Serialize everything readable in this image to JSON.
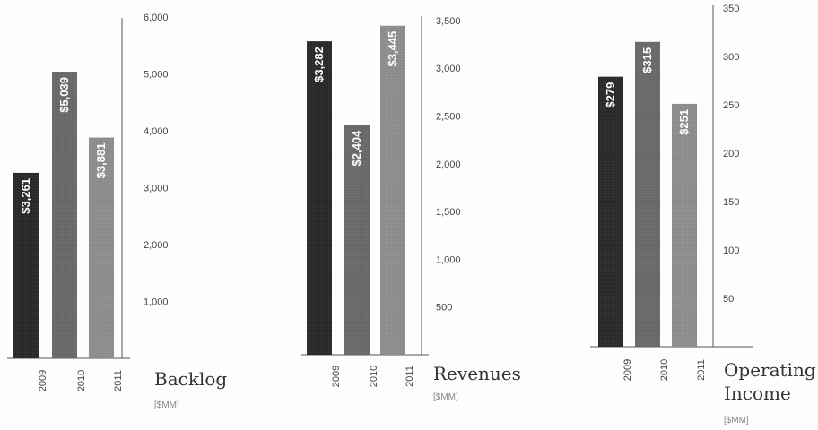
{
  "chart_data": [
    {
      "type": "bar",
      "title": [
        "Backlog"
      ],
      "unit": "[$MM]",
      "categories": [
        "2009",
        "2010",
        "2011"
      ],
      "values": [
        3261,
        5039,
        3881
      ],
      "data_labels": [
        "$3,261",
        "$5,039",
        "$3,881"
      ],
      "yticks": [
        1000,
        2000,
        3000,
        4000,
        5000,
        6000
      ],
      "ytick_labels": [
        "1,000",
        "2,000",
        "3,000",
        "4,000",
        "5,000",
        "6,000"
      ],
      "ylim": [
        0,
        6000
      ],
      "colors": [
        "#2b2b2b",
        "#6a6a6a",
        "#8e8e8e"
      ],
      "grid": false
    },
    {
      "type": "bar",
      "title": [
        "Revenues"
      ],
      "unit": "[$MM]",
      "categories": [
        "2009",
        "2010",
        "2011"
      ],
      "values": [
        3282,
        2404,
        3445
      ],
      "data_labels": [
        "$3,282",
        "$2,404",
        "$3,445"
      ],
      "yticks": [
        500,
        1000,
        1500,
        2000,
        2500,
        3000,
        3500
      ],
      "ytick_labels": [
        "500",
        "1,000",
        "1,500",
        "2,000",
        "2,500",
        "3,000",
        "3,500"
      ],
      "ylim": [
        0,
        3500
      ],
      "colors": [
        "#2b2b2b",
        "#6a6a6a",
        "#8e8e8e"
      ],
      "grid": false
    },
    {
      "type": "bar",
      "title": [
        "Operating",
        "Income"
      ],
      "unit": "[$MM]",
      "categories": [
        "2009",
        "2010",
        "2011"
      ],
      "values": [
        279,
        315,
        251
      ],
      "data_labels": [
        "$279",
        "$315",
        "$251"
      ],
      "yticks": [
        50,
        100,
        150,
        200,
        250,
        300,
        350
      ],
      "ytick_labels": [
        "50",
        "100",
        "150",
        "200",
        "250",
        "300",
        "350"
      ],
      "ylim": [
        0,
        350
      ],
      "colors": [
        "#2b2b2b",
        "#6a6a6a",
        "#8e8e8e"
      ],
      "grid": false
    }
  ]
}
